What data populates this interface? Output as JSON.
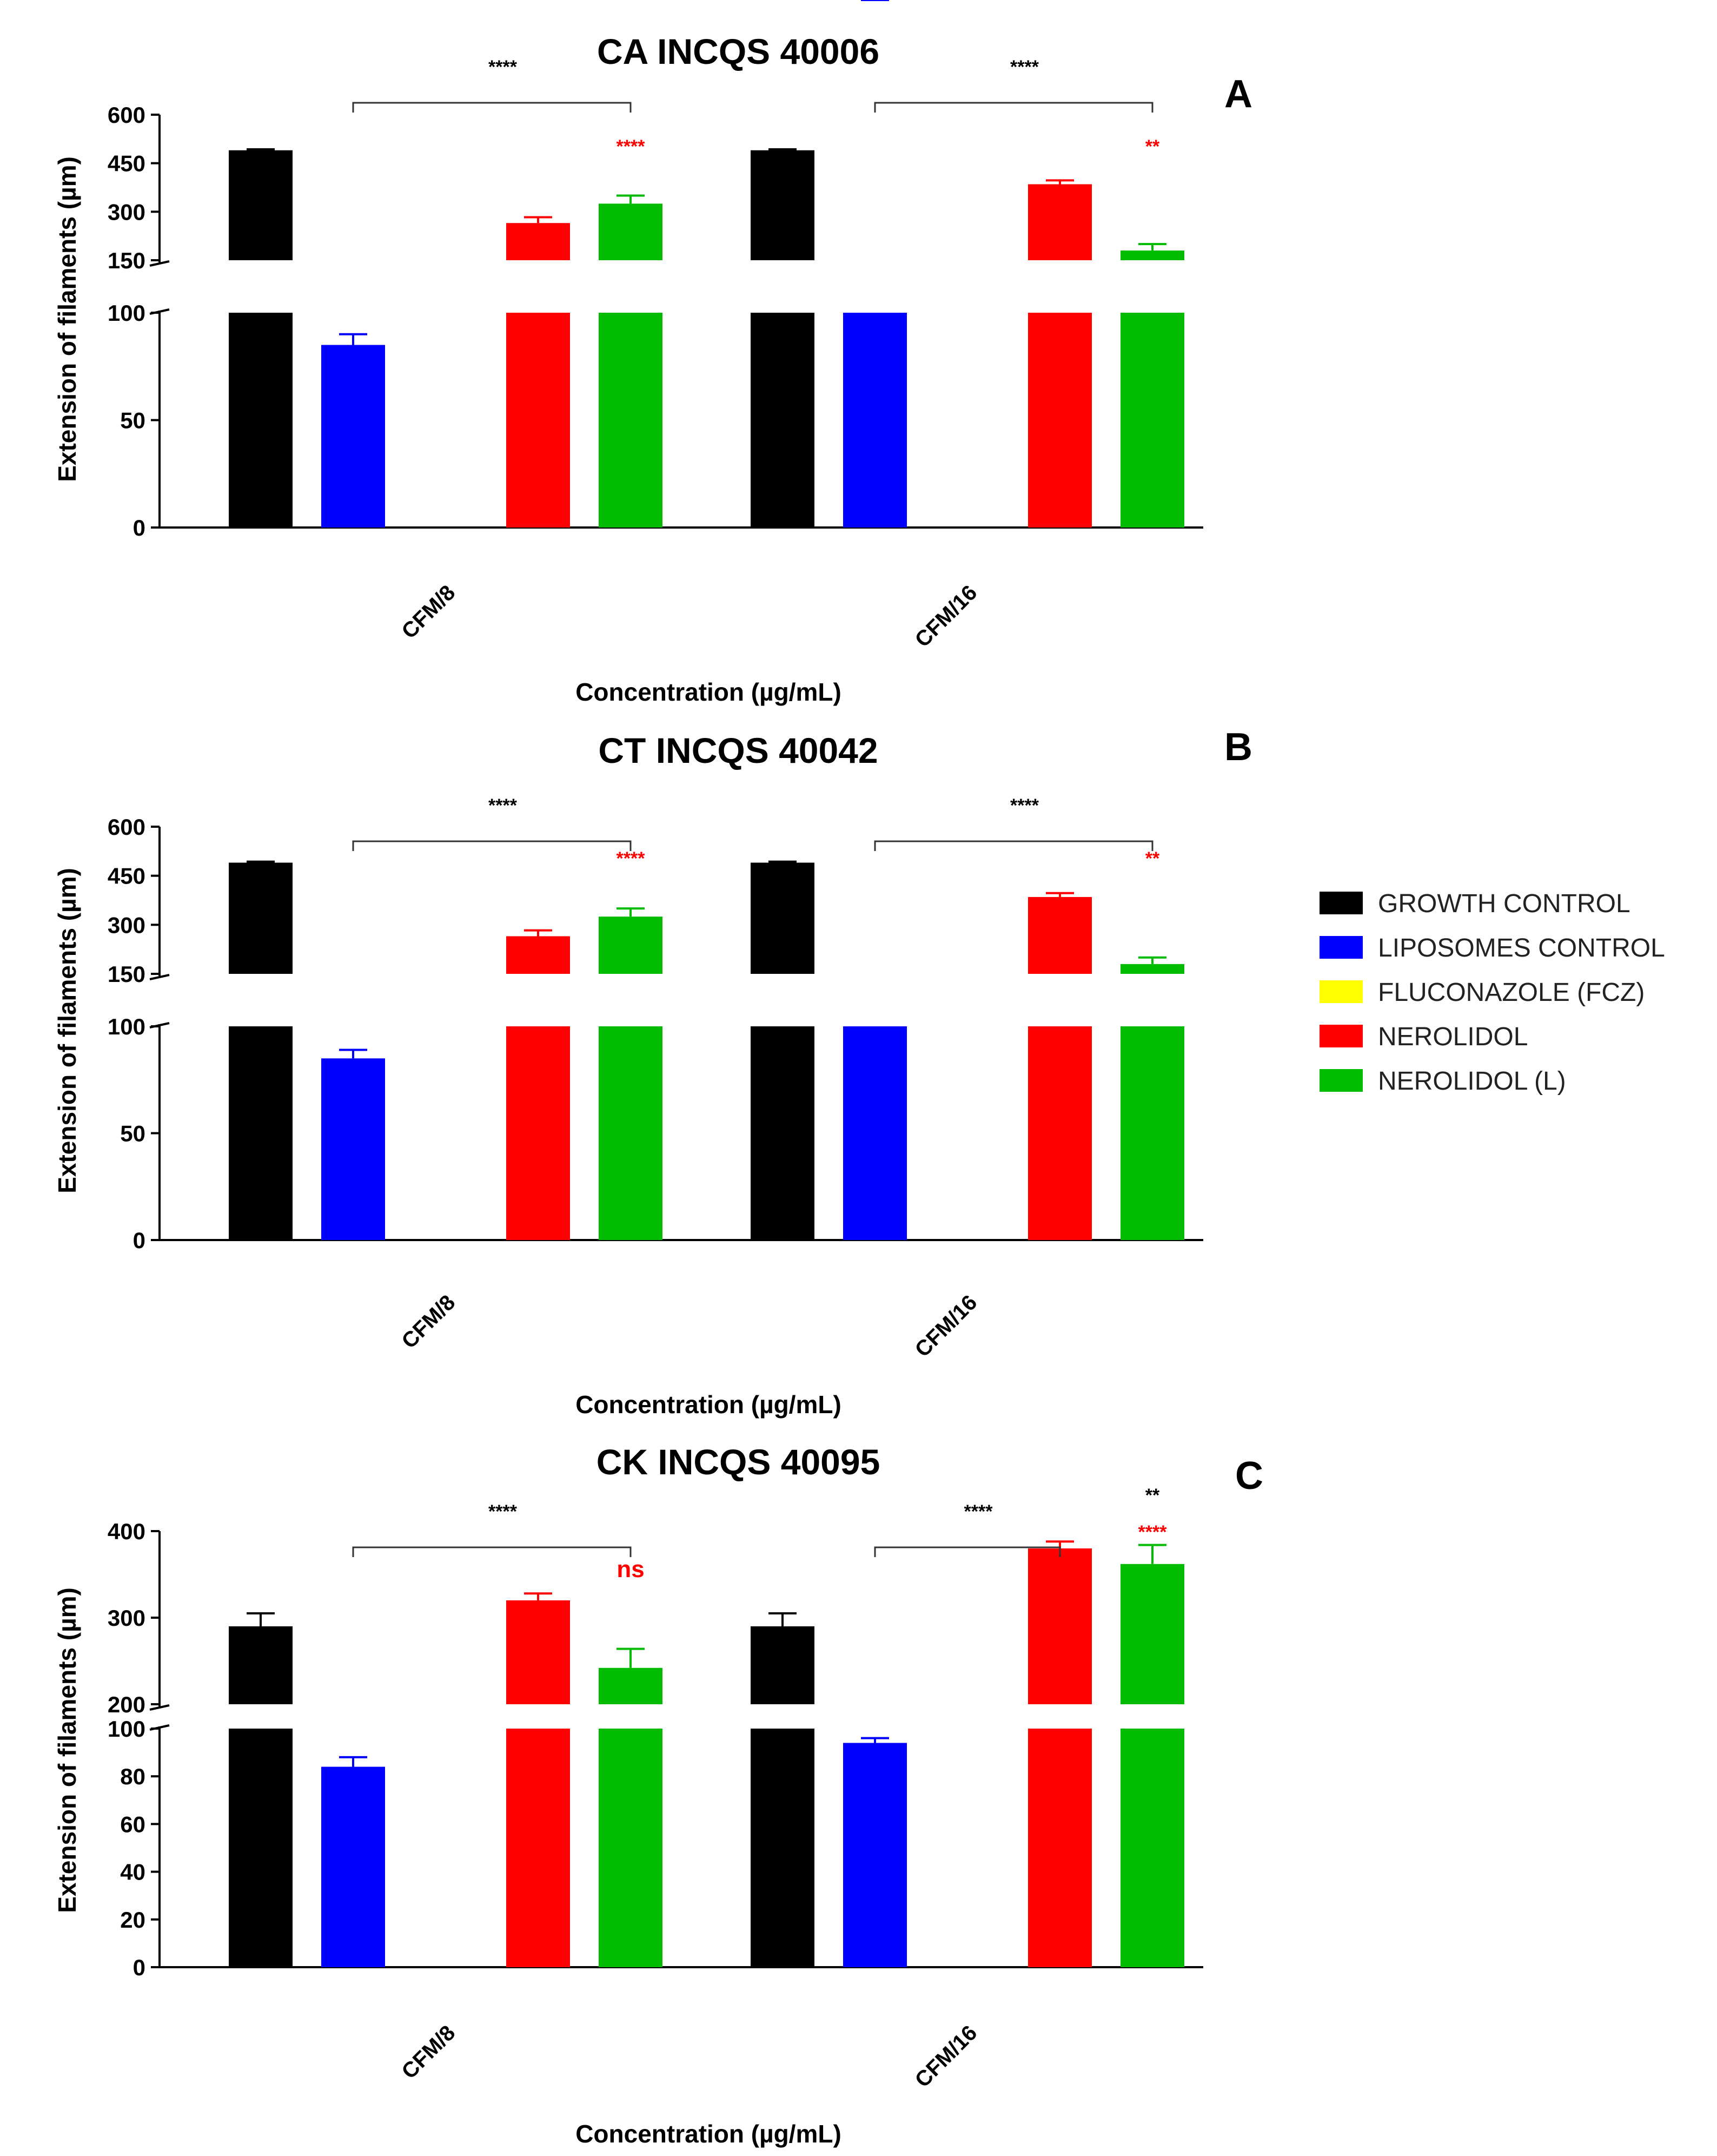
{
  "legend": [
    {
      "label": "GROWTH CONTROL",
      "color": "#000000"
    },
    {
      "label": "LIPOSOMES CONTROL",
      "color": "#0000ff"
    },
    {
      "label": "FLUCONAZOLE (FCZ)",
      "color": "#ffff00"
    },
    {
      "label": "NEROLIDOL",
      "color": "#ff0000"
    },
    {
      "label": "NEROLIDOL (L)",
      "color": "#00bb00"
    }
  ],
  "chart_data": [
    {
      "type": "bar",
      "panel_letter": "A",
      "title": "CA INCQS 40006",
      "ylabel": "Extension of filaments (µm)",
      "xlabel": "Concentration (µg/mL)",
      "categories": [
        "CFM/8",
        "CFM/16"
      ],
      "axis_break": {
        "lower": [
          0,
          100
        ],
        "upper": [
          150,
          600
        ]
      },
      "lower_ticks": [
        "0",
        "50",
        "100"
      ],
      "upper_ticks": [
        "150",
        "300",
        "450",
        "600"
      ],
      "series": [
        {
          "name": "GROWTH CONTROL",
          "values": [
            490,
            490
          ],
          "errors": [
            3,
            3
          ]
        },
        {
          "name": "LIPOSOMES CONTROL",
          "values": [
            85,
            107
          ],
          "errors": [
            5,
            3
          ]
        },
        {
          "name": "FLUCONAZOLE (FCZ)",
          "values": [
            0,
            0
          ],
          "errors": [
            0,
            0
          ]
        },
        {
          "name": "NEROLIDOL",
          "values": [
            265,
            385
          ],
          "errors": [
            18,
            12
          ]
        },
        {
          "name": "NEROLIDOL (L)",
          "values": [
            325,
            180
          ],
          "errors": [
            25,
            20
          ]
        }
      ],
      "brackets": [
        {
          "label": "****",
          "category": 0,
          "from_series": 1,
          "to_series": 4
        },
        {
          "label": "****",
          "category": 1,
          "from_series": 1,
          "to_series": 4
        }
      ],
      "bar_marks": [
        {
          "label": "****",
          "category": 0,
          "series": 4,
          "color": "#ff0000"
        },
        {
          "label": "**",
          "category": 1,
          "series": 4,
          "color": "#ff0000"
        }
      ]
    },
    {
      "type": "bar",
      "panel_letter": "B",
      "title": "CT INCQS 40042",
      "ylabel": "Extension of filaments (µm)",
      "xlabel": "Concentration (µg/mL)",
      "categories": [
        "CFM/8",
        "CFM/16"
      ],
      "axis_break": {
        "lower": [
          0,
          100
        ],
        "upper": [
          150,
          600
        ]
      },
      "lower_ticks": [
        "0",
        "50",
        "100"
      ],
      "upper_ticks": [
        "150",
        "300",
        "450",
        "600"
      ],
      "series": [
        {
          "name": "GROWTH CONTROL",
          "values": [
            490,
            490
          ],
          "errors": [
            3,
            3
          ]
        },
        {
          "name": "LIPOSOMES CONTROL",
          "values": [
            85,
            106
          ],
          "errors": [
            4,
            3
          ]
        },
        {
          "name": "FLUCONAZOLE (FCZ)",
          "values": [
            0,
            0
          ],
          "errors": [
            0,
            0
          ]
        },
        {
          "name": "NEROLIDOL",
          "values": [
            265,
            385
          ],
          "errors": [
            18,
            12
          ]
        },
        {
          "name": "NEROLIDOL (L)",
          "values": [
            325,
            180
          ],
          "errors": [
            25,
            20
          ]
        }
      ],
      "brackets": [
        {
          "label": "****",
          "category": 0,
          "from_series": 1,
          "to_series": 4
        },
        {
          "label": "****",
          "category": 1,
          "from_series": 1,
          "to_series": 4
        }
      ],
      "bar_marks": [
        {
          "label": "****",
          "category": 0,
          "series": 4,
          "color": "#ff0000"
        },
        {
          "label": "**",
          "category": 1,
          "series": 4,
          "color": "#ff0000"
        }
      ]
    },
    {
      "type": "bar",
      "panel_letter": "C",
      "title": "CK INCQS 40095",
      "ylabel": "Extension of filaments (µm)",
      "xlabel": "Concentration (µg/mL)",
      "categories": [
        "CFM/8",
        "CFM/16"
      ],
      "axis_break": {
        "lower": [
          0,
          100
        ],
        "upper": [
          200,
          400
        ]
      },
      "lower_ticks": [
        "0",
        "20",
        "40",
        "60",
        "80",
        "100"
      ],
      "upper_ticks": [
        "200",
        "300",
        "400"
      ],
      "series": [
        {
          "name": "GROWTH CONTROL",
          "values": [
            290,
            290
          ],
          "errors": [
            15,
            15
          ]
        },
        {
          "name": "LIPOSOMES CONTROL",
          "values": [
            84,
            94
          ],
          "errors": [
            4,
            2
          ]
        },
        {
          "name": "FLUCONAZOLE (FCZ)",
          "values": [
            0,
            0
          ],
          "errors": [
            0,
            0
          ]
        },
        {
          "name": "NEROLIDOL",
          "values": [
            320,
            380
          ],
          "errors": [
            8,
            8
          ]
        },
        {
          "name": "NEROLIDOL (L)",
          "values": [
            242,
            362
          ],
          "errors": [
            22,
            22
          ]
        }
      ],
      "brackets": [
        {
          "label": "****",
          "category": 0,
          "from_series": 1,
          "to_series": 4
        },
        {
          "label": "****",
          "category": 1,
          "from_series": 1,
          "to_series": 3
        }
      ],
      "bar_marks": [
        {
          "label": "ns",
          "category": 0,
          "series": 4,
          "color": "#ff0000"
        },
        {
          "label": "**",
          "category": 1,
          "series": 4,
          "color": "#000000"
        },
        {
          "label": "****",
          "category": 1,
          "series": 4,
          "color": "#ff0000"
        }
      ]
    }
  ]
}
